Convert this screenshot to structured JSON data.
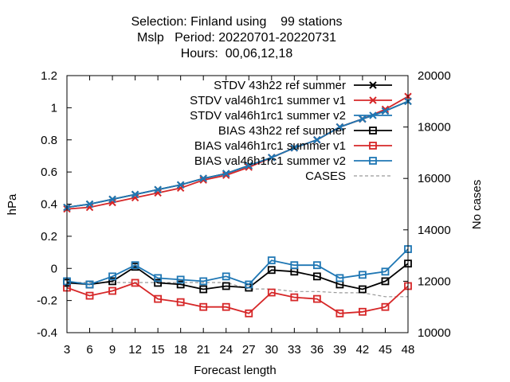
{
  "chart_data": {
    "type": "line",
    "title_lines": [
      "Selection: Finland using    99 stations",
      "Mslp   Period: 20220701-20220731",
      "Hours:  00,06,12,18"
    ],
    "xlabel": "Forecast length",
    "ylabel": "hPa",
    "y2label": "No cases",
    "x": [
      3,
      6,
      9,
      12,
      15,
      18,
      21,
      24,
      27,
      30,
      33,
      36,
      39,
      42,
      45,
      48
    ],
    "x_ticks": [
      "3",
      "6",
      "9",
      "12",
      "15",
      "18",
      "21",
      "24",
      "27",
      "30",
      "33",
      "36",
      "39",
      "42",
      "45",
      "48"
    ],
    "xlim": [
      3,
      48
    ],
    "ylim": [
      -0.4,
      1.2
    ],
    "y_ticks": [
      "-0.4",
      "-0.2",
      "0",
      "0.2",
      "0.4",
      "0.6",
      "0.8",
      "1",
      "1.2"
    ],
    "y2lim": [
      10000,
      20000
    ],
    "y2_ticks": [
      "10000",
      "12000",
      "14000",
      "16000",
      "18000",
      "20000"
    ],
    "grid": false,
    "legend_position": "top-right",
    "series": [
      {
        "name": "STDV 43h22_ref_summer",
        "legend_label": "STDV 43h22 ref summer",
        "axis": "y1",
        "color": "#000000",
        "marker": "x",
        "dash": "",
        "values": [
          0.38,
          0.4,
          0.43,
          0.46,
          0.49,
          0.52,
          0.56,
          0.59,
          0.64,
          0.69,
          0.75,
          0.8,
          0.88,
          0.93,
          0.98,
          1.04
        ]
      },
      {
        "name": "STDV val46h1rc1_summer_v1",
        "legend_label": "STDV val46h1rc1 summer v1",
        "axis": "y1",
        "color": "#d62728",
        "marker": "x",
        "dash": "",
        "values": [
          0.37,
          0.38,
          0.41,
          0.44,
          0.47,
          0.5,
          0.55,
          0.58,
          0.63,
          0.69,
          0.75,
          0.8,
          0.88,
          0.93,
          0.99,
          1.07
        ]
      },
      {
        "name": "STDV val46h1rc1_summer_v2",
        "legend_label": "STDV val46h1rc1 summer v2",
        "axis": "y1",
        "color": "#1f77b4",
        "marker": "x",
        "dash": "",
        "values": [
          0.38,
          0.4,
          0.43,
          0.46,
          0.49,
          0.52,
          0.56,
          0.59,
          0.64,
          0.69,
          0.75,
          0.8,
          0.88,
          0.93,
          0.98,
          1.04
        ]
      },
      {
        "name": "BIAS 43h22_ref_summer",
        "legend_label": "BIAS 43h22 ref summer",
        "axis": "y1",
        "color": "#000000",
        "marker": "square",
        "dash": "",
        "values": [
          -0.09,
          -0.1,
          -0.08,
          0.01,
          -0.09,
          -0.1,
          -0.13,
          -0.11,
          -0.12,
          -0.01,
          -0.02,
          -0.05,
          -0.1,
          -0.13,
          -0.08,
          0.03
        ]
      },
      {
        "name": "BIAS val46h1rc1_summer_v1",
        "legend_label": "BIAS val46h1rc1 summer v1",
        "axis": "y1",
        "color": "#d62728",
        "marker": "square",
        "dash": "",
        "values": [
          -0.12,
          -0.17,
          -0.14,
          -0.09,
          -0.19,
          -0.21,
          -0.24,
          -0.24,
          -0.28,
          -0.15,
          -0.18,
          -0.19,
          -0.28,
          -0.27,
          -0.24,
          -0.11
        ]
      },
      {
        "name": "BIAS val46h1rc1_summer_v2",
        "legend_label": "BIAS val46h1rc1 summer v2",
        "axis": "y1",
        "color": "#1f77b4",
        "marker": "square",
        "dash": "",
        "values": [
          -0.08,
          -0.1,
          -0.05,
          0.02,
          -0.06,
          -0.07,
          -0.08,
          -0.05,
          -0.1,
          0.05,
          0.02,
          0.02,
          -0.06,
          -0.04,
          -0.02,
          0.12
        ]
      },
      {
        "name": "CASES",
        "legend_label": "CASES",
        "axis": "y2",
        "color": "#999999",
        "marker": "none",
        "dash": "4,3",
        "values": [
          11950,
          11950,
          11950,
          11950,
          11950,
          11950,
          11950,
          11950,
          11700,
          11700,
          11600,
          11600,
          11550,
          11550,
          11400,
          11400
        ]
      }
    ]
  }
}
